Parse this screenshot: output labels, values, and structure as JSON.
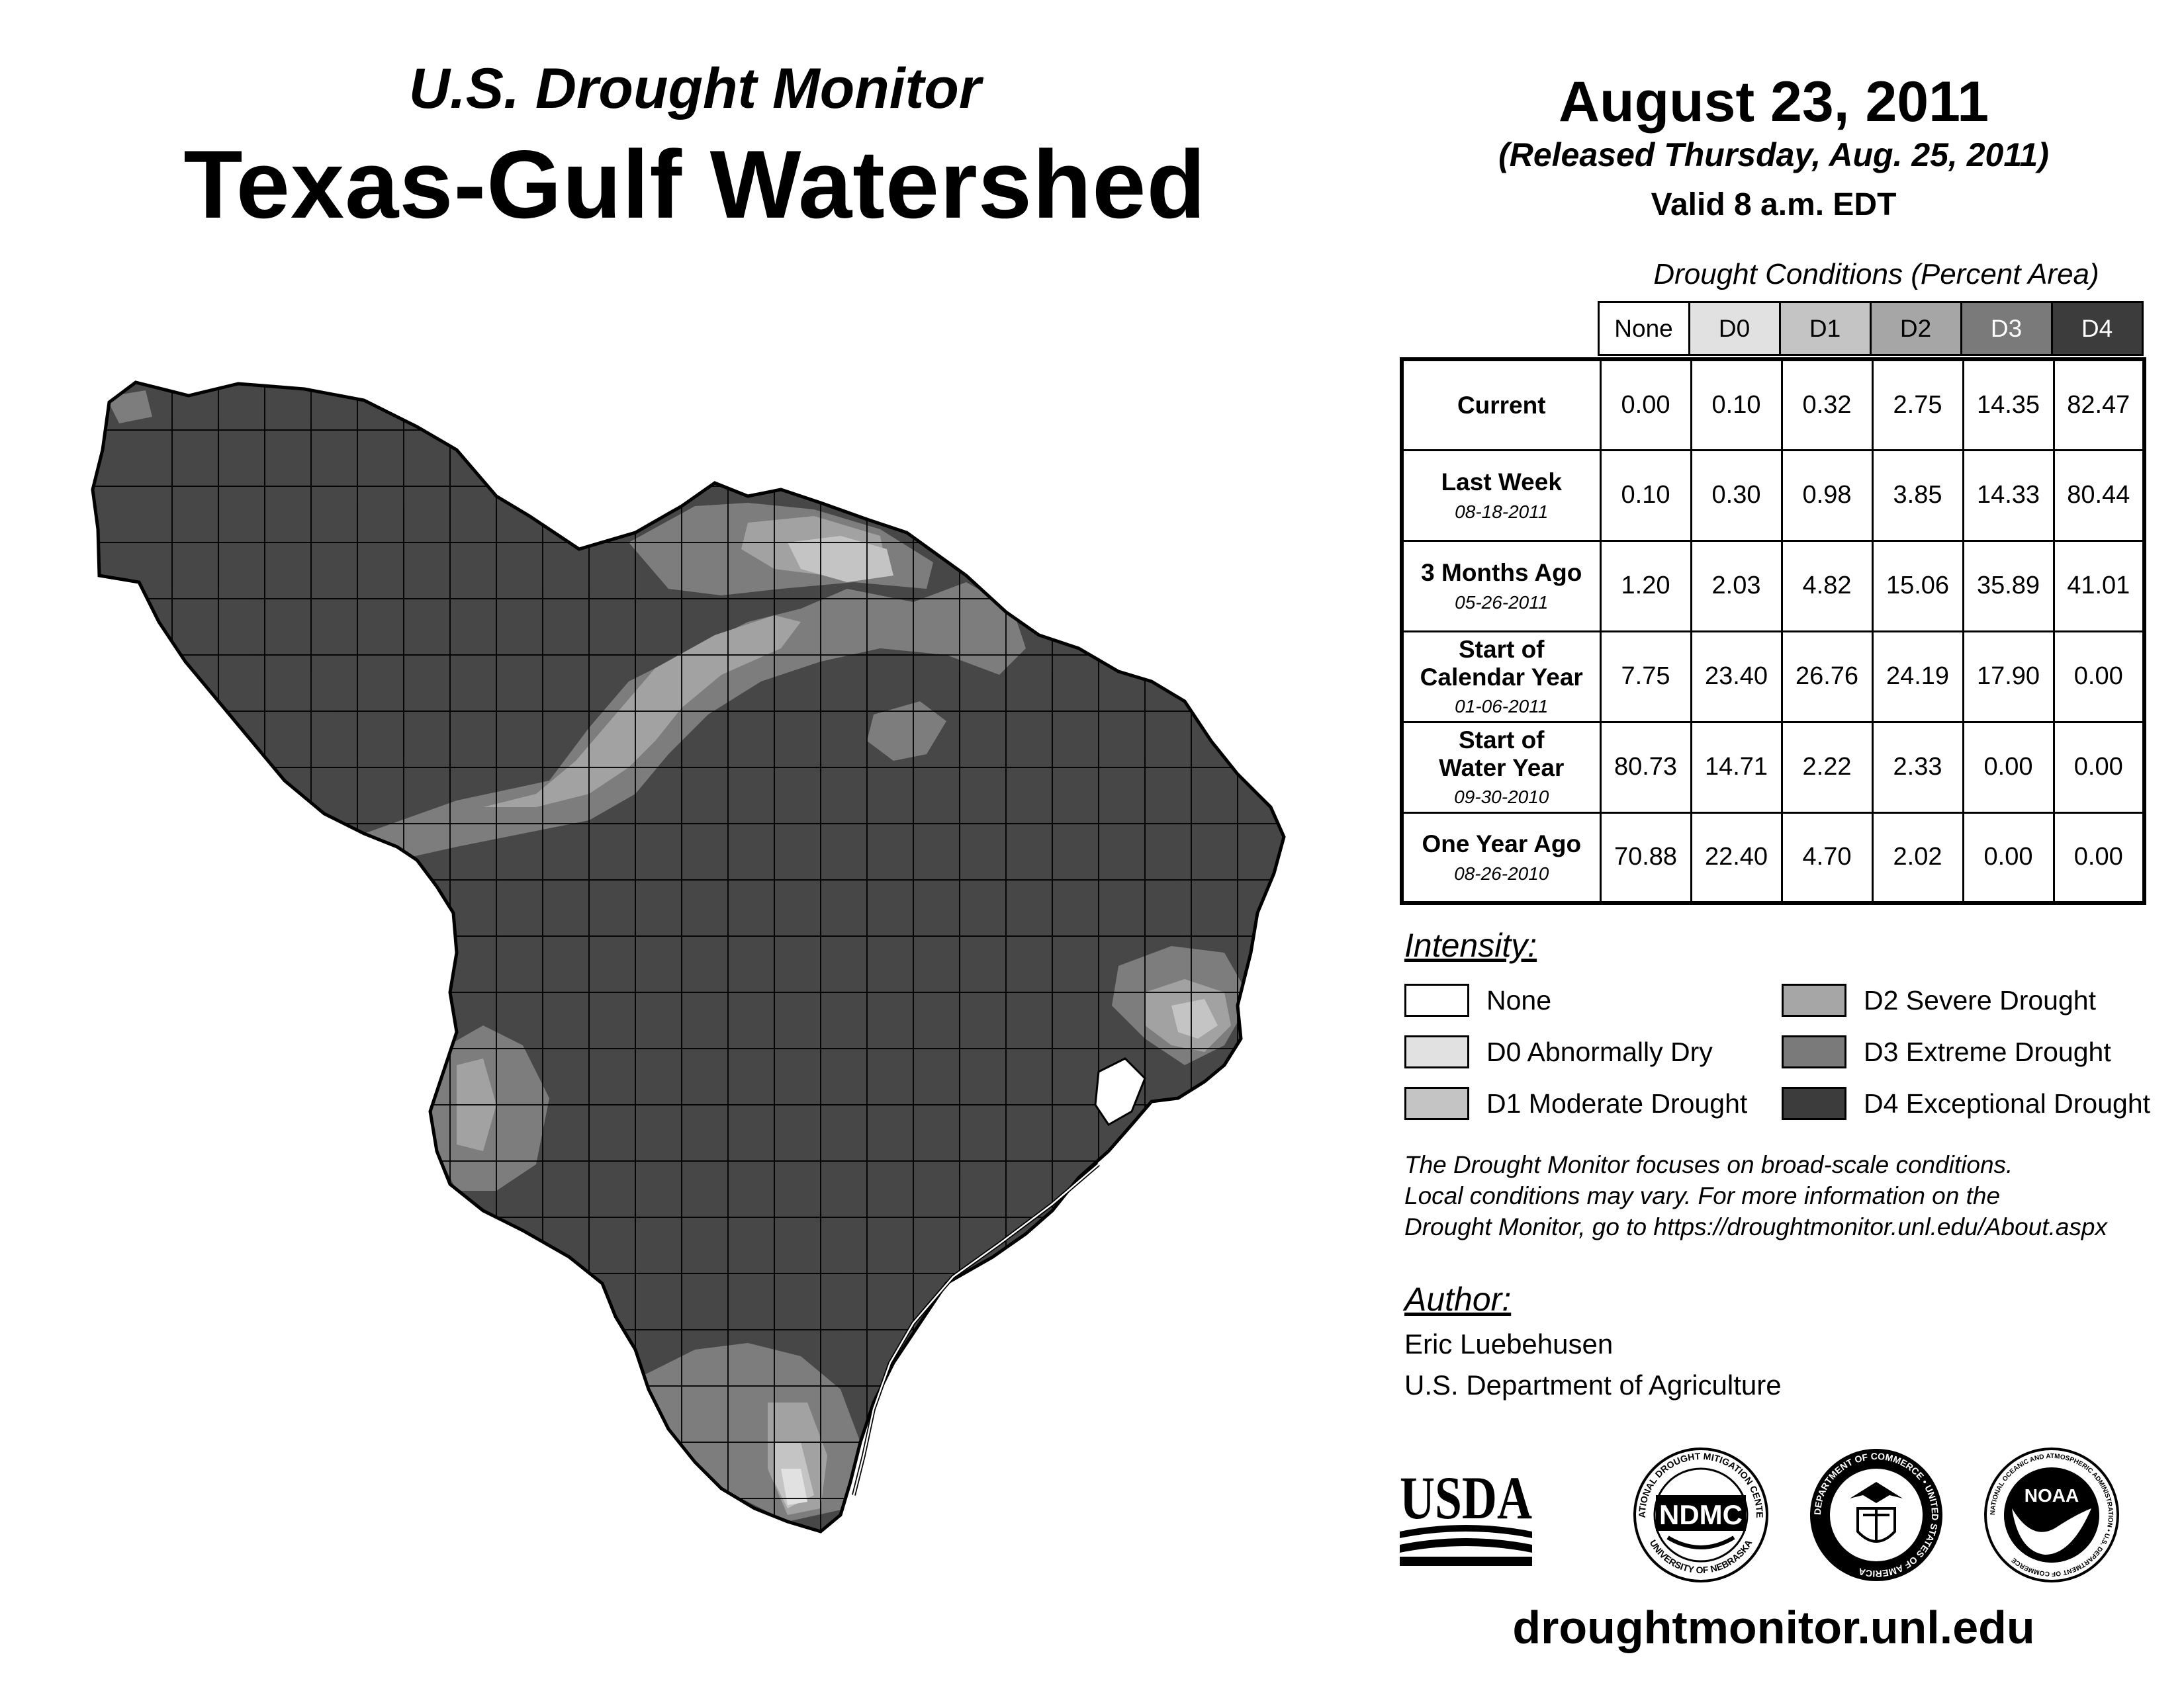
{
  "header": {
    "subtitle": "U.S. Drought Monitor",
    "title": "Texas-Gulf Watershed"
  },
  "dates": {
    "main": "August 23, 2011",
    "released": "(Released Thursday, Aug. 25, 2011)",
    "valid": "Valid 8 a.m. EDT"
  },
  "table": {
    "caption": "Drought Conditions (Percent Area)",
    "columns": [
      "None",
      "D0",
      "D1",
      "D2",
      "D3",
      "D4"
    ],
    "rows": [
      {
        "label": "Current",
        "label2": "",
        "date": "",
        "values": [
          "0.00",
          "0.10",
          "0.32",
          "2.75",
          "14.35",
          "82.47"
        ]
      },
      {
        "label": "Last Week",
        "label2": "",
        "date": "08-18-2011",
        "values": [
          "0.10",
          "0.30",
          "0.98",
          "3.85",
          "14.33",
          "80.44"
        ]
      },
      {
        "label": "3 Months Ago",
        "label2": "",
        "date": "05-26-2011",
        "values": [
          "1.20",
          "2.03",
          "4.82",
          "15.06",
          "35.89",
          "41.01"
        ]
      },
      {
        "label": "Start of",
        "label2": "Calendar Year",
        "date": "01-06-2011",
        "values": [
          "7.75",
          "23.40",
          "26.76",
          "24.19",
          "17.90",
          "0.00"
        ]
      },
      {
        "label": "Start of",
        "label2": "Water Year",
        "date": "09-30-2010",
        "values": [
          "80.73",
          "14.71",
          "2.22",
          "2.33",
          "0.00",
          "0.00"
        ]
      },
      {
        "label": "One Year Ago",
        "label2": "",
        "date": "08-26-2010",
        "values": [
          "70.88",
          "22.40",
          "4.70",
          "2.02",
          "0.00",
          "0.00"
        ]
      }
    ]
  },
  "legend": {
    "title": "Intensity:",
    "items": [
      {
        "label": "None",
        "color": "#ffffff"
      },
      {
        "label": "D0 Abnormally Dry",
        "color": "#e1e1e1"
      },
      {
        "label": "D1 Moderate Drought",
        "color": "#c4c4c4"
      },
      {
        "label": "D2 Severe Drought",
        "color": "#a6a6a6"
      },
      {
        "label": "D3 Extreme Drought",
        "color": "#7a7a7a"
      },
      {
        "label": "D4 Exceptional Drought",
        "color": "#3c3c3c"
      }
    ]
  },
  "note": {
    "line1": "The Drought Monitor focuses on broad-scale conditions.",
    "line2": "Local conditions may vary. For more information on the",
    "line3": "Drought Monitor, go to https://droughtmonitor.unl.edu/About.aspx"
  },
  "author": {
    "title": "Author:",
    "name": "Eric Luebehusen",
    "org": "U.S. Department of Agriculture"
  },
  "logos": {
    "usda": "USDA",
    "ndmc": "NDMC",
    "ndmc_ring_top": "NATIONAL DROUGHT MITIGATION CENTER",
    "ndmc_ring_bottom": "UNIVERSITY OF NEBRASKA",
    "commerce_ring": "DEPARTMENT OF COMMERCE • UNITED STATES OF AMERICA",
    "noaa": "NOAA",
    "noaa_ring": "NATIONAL OCEANIC AND ATMOSPHERIC ADMINISTRATION • U.S. DEPARTMENT OF COMMERCE"
  },
  "footer": {
    "url": "droughtmonitor.unl.edu"
  }
}
